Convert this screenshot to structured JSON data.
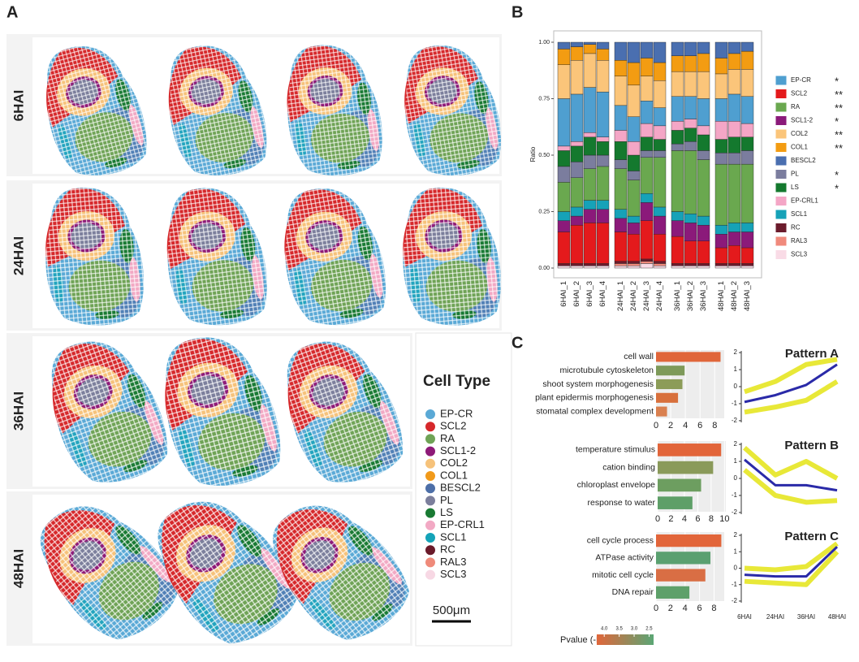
{
  "panel_labels": [
    "A",
    "B",
    "C"
  ],
  "panel_a": {
    "rows": [
      "6HAI",
      "24HAI",
      "36HAI",
      "48HAI"
    ],
    "legend_title": "Cell Type",
    "cell_types": [
      {
        "name": "EP-CR",
        "color": "#5aa9d6"
      },
      {
        "name": "SCL2",
        "color": "#d6282b"
      },
      {
        "name": "RA",
        "color": "#6fa356"
      },
      {
        "name": "SCL1-2",
        "color": "#8e1a78"
      },
      {
        "name": "COL2",
        "color": "#f6c27a"
      },
      {
        "name": "COL1",
        "color": "#f19a1a"
      },
      {
        "name": "BESCL2",
        "color": "#4d6fa8"
      },
      {
        "name": "PL",
        "color": "#7c7f9c"
      },
      {
        "name": "LS",
        "color": "#197a33"
      },
      {
        "name": "EP-CRL1",
        "color": "#f2a9c4"
      },
      {
        "name": "SCL1",
        "color": "#14a3b8"
      },
      {
        "name": "RC",
        "color": "#6a1a2a"
      },
      {
        "name": "RAL3",
        "color": "#ef8a7a"
      },
      {
        "name": "SCL3",
        "color": "#f7d8e4"
      }
    ],
    "scale_bar": "500μm"
  },
  "colorbar": {
    "title": "Pvalue (-Lg)",
    "lim": [
      4.25,
      2.35
    ],
    "colors": [
      "#e0663a",
      "#5ba675"
    ],
    "ticks": [
      {
        "value": 4,
        "label": "4.0"
      },
      3.5,
      {
        "value": 3,
        "label": "3.0"
      },
      2.5
    ]
  },
  "chart_data": [
    {
      "type": "stacked_bar",
      "ylabel": "Ratio",
      "categories": [
        "6HAI_1",
        "6HAI_2",
        "6HAI_3",
        "6HAI_4",
        "24HAI_1",
        "24HAI_2",
        "24HAI_3",
        "24HAI_4",
        "36HAI_1",
        "36HAI_2",
        "36HAI_3",
        "48HAI_1",
        "48HAI_2",
        "48HAI_3"
      ],
      "ylim": [
        0,
        1
      ],
      "yticks": [
        {
          "value": 0,
          "label": "0.00"
        },
        {
          "value": 0.25,
          "label": "0.25"
        },
        {
          "value": 0.5,
          "label": "0.50"
        },
        {
          "value": 0.75,
          "label": "0.75"
        },
        {
          "value": 1,
          "label": "1.00"
        }
      ],
      "series": [
        {
          "name": "EP-CR",
          "color": "#4f9fd0",
          "significance": "*",
          "values": [
            0.21,
            0.21,
            0.2,
            0.2,
            0.11,
            0.11,
            0.1,
            0.08,
            0.11,
            0.1,
            0.12,
            0.1,
            0.12,
            0.12
          ]
        },
        {
          "name": "SCL2",
          "color": "#e41a1c",
          "significance": "**",
          "values": [
            0.14,
            0.17,
            0.18,
            0.18,
            0.13,
            0.12,
            0.17,
            0.12,
            0.12,
            0.1,
            0.1,
            0.07,
            0.08,
            0.07
          ]
        },
        {
          "name": "RA",
          "color": "#6aa84f",
          "significance": "**",
          "values": [
            0.13,
            0.13,
            0.14,
            0.15,
            0.18,
            0.16,
            0.16,
            0.22,
            0.27,
            0.28,
            0.25,
            0.27,
            0.26,
            0.26
          ]
        },
        {
          "name": "SCL1-2",
          "color": "#8b1a7a",
          "significance": "*",
          "values": [
            0.05,
            0.04,
            0.06,
            0.06,
            0.06,
            0.05,
            0.08,
            0.08,
            0.07,
            0.08,
            0.07,
            0.06,
            0.06,
            0.07
          ]
        },
        {
          "name": "COL2",
          "color": "#fbc57a",
          "significance": "**",
          "values": [
            0.15,
            0.15,
            0.15,
            0.14,
            0.13,
            0.14,
            0.11,
            0.12,
            0.11,
            0.11,
            0.12,
            0.11,
            0.11,
            0.12
          ]
        },
        {
          "name": "COL1",
          "color": "#f39c12",
          "significance": "**",
          "values": [
            0.07,
            0.06,
            0.04,
            0.05,
            0.07,
            0.1,
            0.08,
            0.08,
            0.07,
            0.07,
            0.08,
            0.07,
            0.07,
            0.08
          ]
        },
        {
          "name": "BESCL2",
          "color": "#4a6fb0",
          "values": [
            0.03,
            0.02,
            0.01,
            0.03,
            0.08,
            0.09,
            0.07,
            0.09,
            0.06,
            0.06,
            0.05,
            0.07,
            0.05,
            0.04
          ]
        },
        {
          "name": "PL",
          "color": "#7b7d9e",
          "significance": "*",
          "values": [
            0.07,
            0.07,
            0.06,
            0.05,
            0.04,
            0.04,
            0.03,
            0.03,
            0.03,
            0.04,
            0.04,
            0.05,
            0.05,
            0.06
          ]
        },
        {
          "name": "LS",
          "color": "#14792e",
          "significance": "*",
          "values": [
            0.07,
            0.07,
            0.08,
            0.06,
            0.08,
            0.07,
            0.06,
            0.05,
            0.06,
            0.06,
            0.07,
            0.06,
            0.07,
            0.06
          ]
        },
        {
          "name": "EP-CRL1",
          "color": "#f4a6c6",
          "values": [
            0.02,
            0.02,
            0.02,
            0.02,
            0.05,
            0.06,
            0.06,
            0.06,
            0.04,
            0.04,
            0.04,
            0.08,
            0.07,
            0.06
          ]
        },
        {
          "name": "SCL1",
          "color": "#16a2b8",
          "values": [
            0.04,
            0.04,
            0.04,
            0.04,
            0.04,
            0.03,
            0.04,
            0.04,
            0.04,
            0.04,
            0.04,
            0.04,
            0.04,
            0.04
          ]
        },
        {
          "name": "RC",
          "color": "#6b1b2c",
          "values": [
            0.01,
            0.01,
            0.01,
            0.01,
            0.01,
            0.01,
            0.01,
            0.01,
            0.01,
            0.01,
            0.01,
            0.01,
            0.01,
            0.01
          ]
        },
        {
          "name": "RAL3",
          "color": "#f08a7c",
          "values": [
            0,
            0,
            0,
            0,
            0.01,
            0.01,
            0.01,
            0.01,
            0,
            0,
            0,
            0,
            0,
            0
          ]
        },
        {
          "name": "SCL3",
          "color": "#f9dbe6",
          "values": [
            0.01,
            0.01,
            0.01,
            0.01,
            0.01,
            0.01,
            0.02,
            0.01,
            0.01,
            0.01,
            0.01,
            0.01,
            0.01,
            0.01
          ]
        }
      ]
    },
    {
      "type": "bar",
      "horizontal": true,
      "categories": [
        "cell wall",
        "microtubule cytoskeleton",
        "shoot system morphogenesis",
        "plant epidermis morphogenesis",
        "stomatal complex development"
      ],
      "values": [
        8.8,
        3.9,
        3.6,
        3.0,
        1.5
      ],
      "colors": [
        "#e0663a",
        "#7e9a5a",
        "#8c9c58",
        "#d8703c",
        "#d9804f"
      ],
      "xlim": [
        0,
        9.3
      ],
      "xticks": [
        0,
        2,
        4,
        6,
        8
      ]
    },
    {
      "type": "bar",
      "horizontal": true,
      "categories": [
        "temperature stimulus",
        "cation binding",
        "chloroplast envelope",
        "response to water"
      ],
      "values": [
        9.5,
        8.3,
        6.5,
        5.2
      ],
      "colors": [
        "#e2653a",
        "#8a9a5a",
        "#6d9e60",
        "#5e9f68"
      ],
      "xlim": [
        0,
        10.2
      ],
      "xticks": [
        0,
        2,
        4,
        6,
        8,
        10
      ]
    },
    {
      "type": "bar",
      "horizontal": true,
      "categories": [
        "cell cycle process",
        "ATPase activity",
        "mitotic cell cycle",
        "DNA repair"
      ],
      "values": [
        9.0,
        7.5,
        6.8,
        4.6
      ],
      "colors": [
        "#e2653a",
        "#5aa070",
        "#d96e44",
        "#5ea06a"
      ],
      "xlim": [
        0,
        9.4
      ],
      "xticks": [
        0,
        2,
        4,
        6,
        8
      ]
    },
    {
      "type": "line",
      "title": "Pattern A",
      "ylim": [
        -2.1,
        2.1
      ],
      "yticks": [
        2,
        1,
        0,
        -1,
        -2
      ],
      "series": [
        {
          "color": "#e4e415",
          "values": [
            -0.3,
            0.3,
            1.3,
            1.6
          ]
        },
        {
          "color": "#e4e415",
          "values": [
            -1.5,
            -1.2,
            -0.8,
            0.3
          ]
        },
        {
          "color": "#2a2aa8",
          "values": [
            -0.9,
            -0.5,
            0.1,
            1.3
          ]
        }
      ]
    },
    {
      "type": "line",
      "title": "Pattern B",
      "ylim": [
        -2.1,
        2.1
      ],
      "yticks": [
        2,
        1,
        0,
        -1,
        -2
      ],
      "series": [
        {
          "color": "#e4e415",
          "values": [
            1.8,
            0.2,
            1.0,
            0.0
          ]
        },
        {
          "color": "#e4e415",
          "values": [
            0.5,
            -1.0,
            -1.4,
            -1.3
          ]
        },
        {
          "color": "#2a2aa8",
          "values": [
            1.1,
            -0.4,
            -0.4,
            -0.7
          ]
        }
      ]
    },
    {
      "type": "line",
      "title": "Pattern C",
      "categories": [
        "6HAI",
        "24HAI",
        "36HAI",
        "48HAI"
      ],
      "ylim": [
        -2.1,
        2.1
      ],
      "yticks": [
        2,
        1,
        0,
        -1,
        -2
      ],
      "series": [
        {
          "color": "#e4e415",
          "values": [
            0.0,
            -0.1,
            0.1,
            1.5
          ]
        },
        {
          "color": "#e4e415",
          "values": [
            -0.8,
            -0.9,
            -1.0,
            1.0
          ]
        },
        {
          "color": "#2a2aa8",
          "values": [
            -0.4,
            -0.5,
            -0.5,
            1.3
          ]
        }
      ]
    }
  ]
}
